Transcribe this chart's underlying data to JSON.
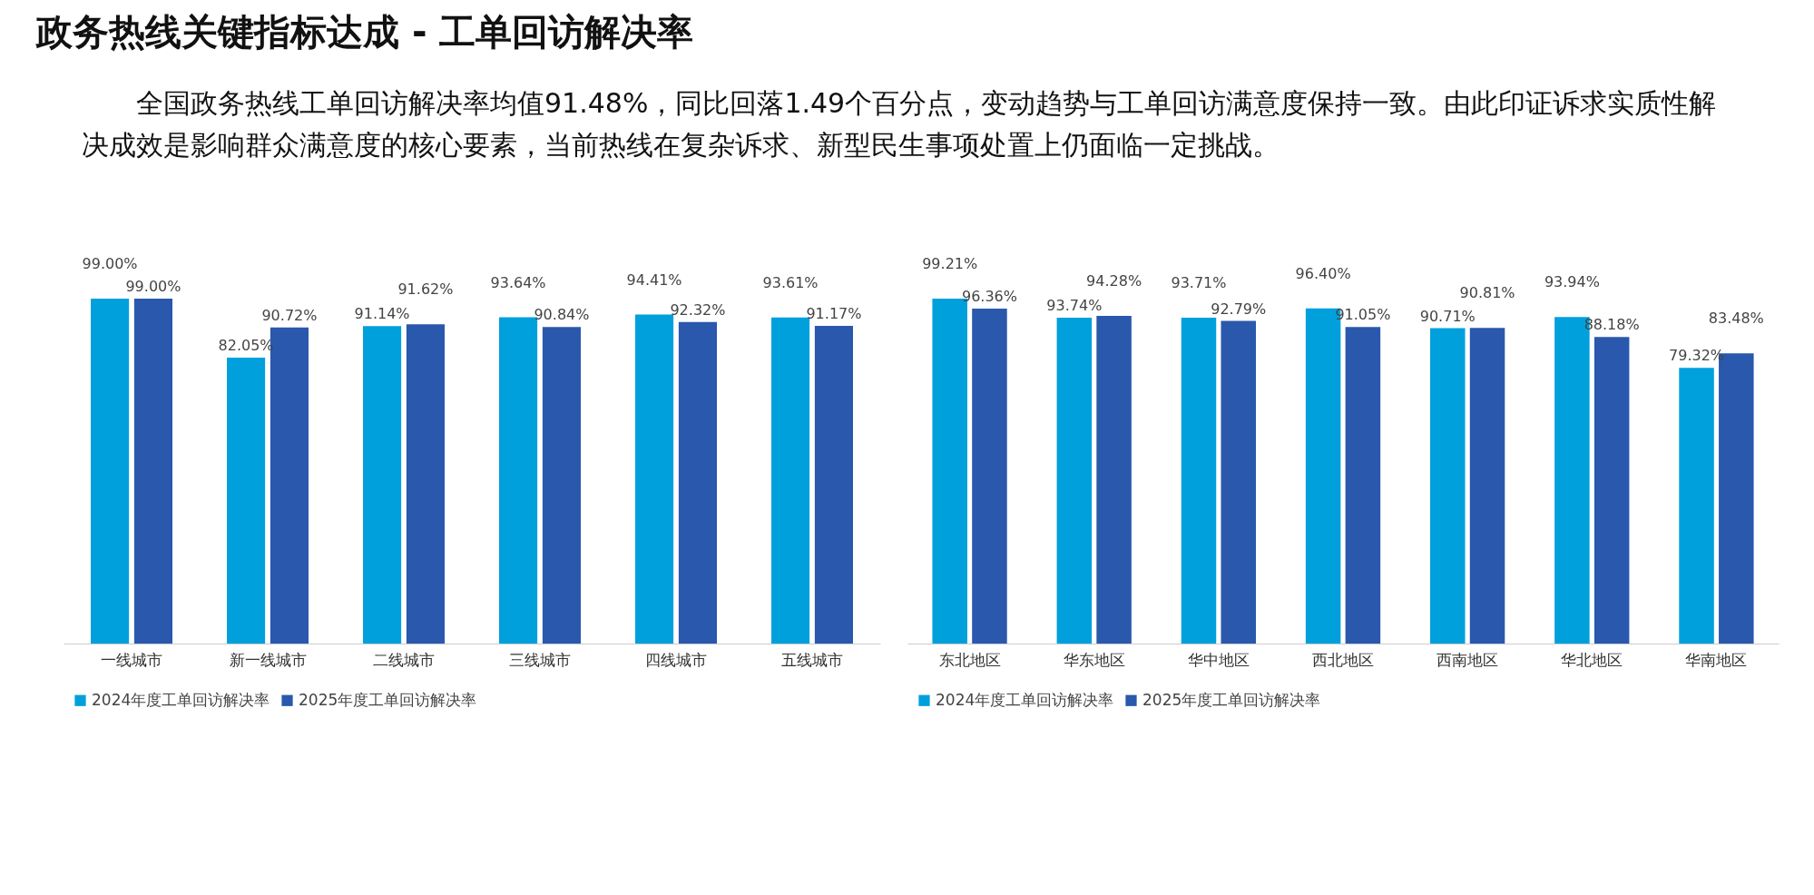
{
  "chart_data": [
    {
      "type": "bar",
      "title": "政务热线关键指标达成 - 工单回访解决率",
      "subtitle": "全国政务热线工单回访解决率均值91.48%，同比回落1.49个百分点，变动趋势与工单回访满意度保持一致。由此印证诉求实质性解决成效是影响群众满意度的核心要素，当前热线在复杂诉求、新型民生事项处置上仍面临一定挑战。",
      "categories": [
        "一线城市",
        "新一线城市",
        "二线城市",
        "三线城市",
        "四线城市",
        "五线城市"
      ],
      "series": [
        {
          "name": "2024年度工单回访解决率",
          "color": "#00a0dc",
          "values": [
            99.0,
            82.05,
            91.14,
            93.64,
            94.41,
            93.61
          ],
          "value_labels": [
            "99.00%",
            "82.05%",
            "91.14%",
            "93.64%",
            "94.41%",
            "93.61%"
          ]
        },
        {
          "name": "2025年度工单回访解决率",
          "color": "#2a58ad",
          "values": [
            99.0,
            90.72,
            91.62,
            90.84,
            92.32,
            91.17
          ],
          "value_labels": [
            "99.00%",
            "90.72%",
            "91.62%",
            "90.84%",
            "92.32%",
            "91.17%"
          ]
        }
      ],
      "legend": "bottom",
      "grid": false
    },
    {
      "type": "bar",
      "categories": [
        "东北地区",
        "华东地区",
        "华中地区",
        "西北地区",
        "西南地区",
        "华北地区",
        "华南地区"
      ],
      "series": [
        {
          "name": "2024年度工单回访解决率",
          "color": "#00a0dc",
          "values": [
            99.21,
            93.74,
            93.71,
            96.4,
            90.71,
            93.94,
            79.32
          ],
          "value_labels": [
            "99.21%",
            "93.74%",
            "93.71%",
            "96.40%",
            "90.71%",
            "93.94%",
            "79.32%"
          ]
        },
        {
          "name": "2025年度工单回访解决率",
          "color": "#2a58ad",
          "values": [
            96.36,
            94.28,
            92.79,
            91.05,
            90.81,
            88.18,
            83.48
          ],
          "value_labels": [
            "96.36%",
            "94.28%",
            "92.79%",
            "91.05%",
            "90.81%",
            "88.18%",
            "83.48%"
          ]
        }
      ],
      "legend": "bottom",
      "grid": false
    }
  ]
}
